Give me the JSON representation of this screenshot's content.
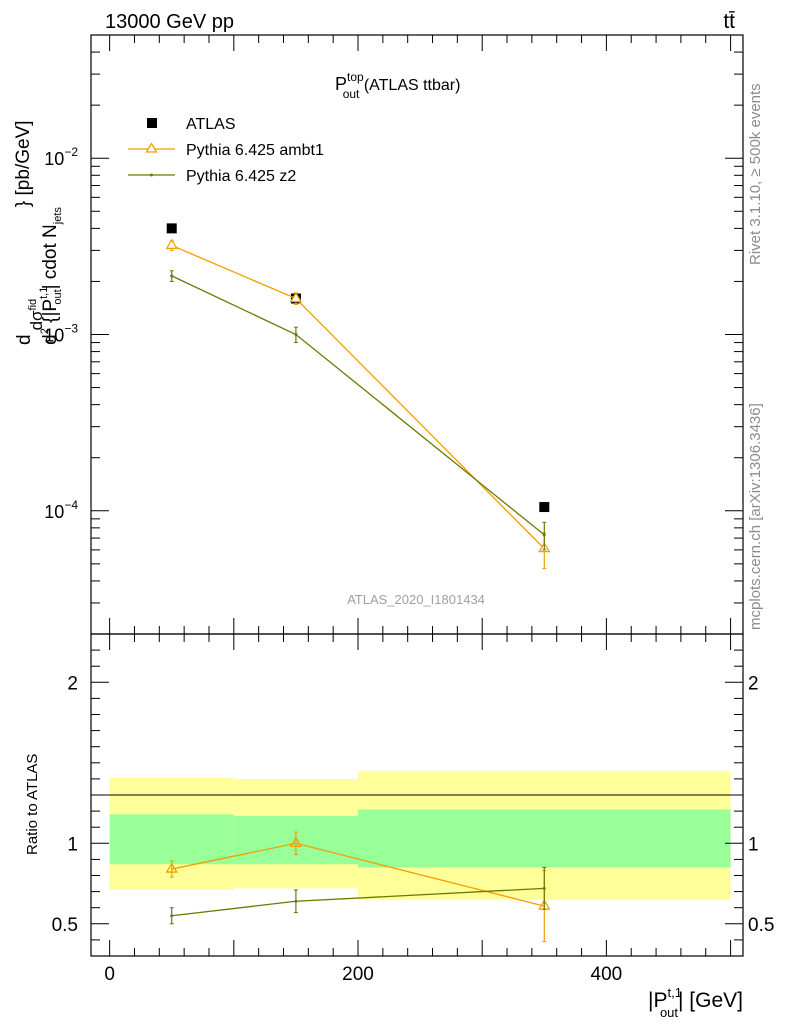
{
  "header": {
    "left": "13000 GeV pp",
    "right": "tt̄"
  },
  "side_labels": {
    "rivet": "Rivet 3.1.10, ≥ 500k events",
    "mcplots": "mcplots.cern.ch [arXiv:1306.3436]"
  },
  "analysis_id": "ATLAS_2020_I1801434",
  "title": {
    "main": "P",
    "sup": "top",
    "sub": "out",
    "rest": " (ATLAS ttbar)"
  },
  "colors": {
    "data": "#000000",
    "ambt1": "#f0a000",
    "z2": "#6b7a00",
    "band_inner": "#99ff99",
    "band_outer": "#ffff99"
  },
  "chart_data": [
    {
      "type": "scatter",
      "panel": "main",
      "yscale": "log",
      "ylim": [
        2e-05,
        0.05
      ],
      "xlim": [
        -15,
        510
      ],
      "ylabel": {
        "t1": "d",
        "t2": "d",
        "t3": "σ",
        "t4": "fid",
        "t5": "d",
        "t6": "2",
        "t7": " {|P",
        "t8": "t,1",
        "t9": "out",
        "t10": "| cdot N",
        "t11": "jets",
        "t12": "} [pb/GeV]"
      },
      "yticks": [
        {
          "base": "10",
          "exp": "−2",
          "value": 0.01
        },
        {
          "base": "10",
          "exp": "−3",
          "value": 0.001
        },
        {
          "base": "10",
          "exp": "−4",
          "value": 0.0001
        }
      ],
      "x": [
        50,
        150,
        350
      ],
      "bin_edges": [
        0,
        100,
        200,
        500
      ],
      "series": [
        {
          "name": "ATLAS",
          "values": [
            0.004,
            0.0016,
            0.000105
          ],
          "marker": "square"
        },
        {
          "name": "Pythia 6.425 ambt1",
          "values": [
            0.0032,
            0.0016,
            6.1e-05
          ],
          "err": [
            0.0002,
            0.00012,
            1.4e-05
          ],
          "marker": "triangle"
        },
        {
          "name": "Pythia 6.425 z2",
          "values": [
            0.00215,
            0.001,
            7.3e-05
          ],
          "err": [
            0.00015,
            0.0001,
            1.3e-05
          ],
          "marker": "dot"
        }
      ],
      "legend_position": "top-left"
    },
    {
      "type": "scatter",
      "panel": "ratio",
      "ylabel": "Ratio to ATLAS",
      "ylim": [
        0.3,
        2.3
      ],
      "xlim": [
        -15,
        510
      ],
      "yticks": [
        "0.5",
        "1",
        "2"
      ],
      "xticks": [
        "0",
        "200",
        "400"
      ],
      "xlabel": {
        "a": "|P",
        "b": "t,1",
        "c": "out",
        "d": "| [GeV]"
      },
      "bands": [
        {
          "x0": 0,
          "x1": 100,
          "inner": [
            0.87,
            1.18
          ],
          "outer": [
            0.71,
            1.41
          ]
        },
        {
          "x0": 100,
          "x1": 200,
          "inner": [
            0.87,
            1.17
          ],
          "outer": [
            0.72,
            1.4
          ]
        },
        {
          "x0": 200,
          "x1": 500,
          "inner": [
            0.85,
            1.21
          ],
          "outer": [
            0.65,
            1.45
          ]
        }
      ],
      "x": [
        50,
        150,
        350
      ],
      "series": [
        {
          "name": "Pythia 6.425 ambt1",
          "values": [
            0.84,
            1.0,
            0.61
          ],
          "err": [
            0.05,
            0.07,
            0.22
          ]
        },
        {
          "name": "Pythia 6.425 z2",
          "values": [
            0.55,
            0.64,
            0.72
          ],
          "err": [
            0.05,
            0.07,
            0.13
          ]
        }
      ]
    }
  ]
}
